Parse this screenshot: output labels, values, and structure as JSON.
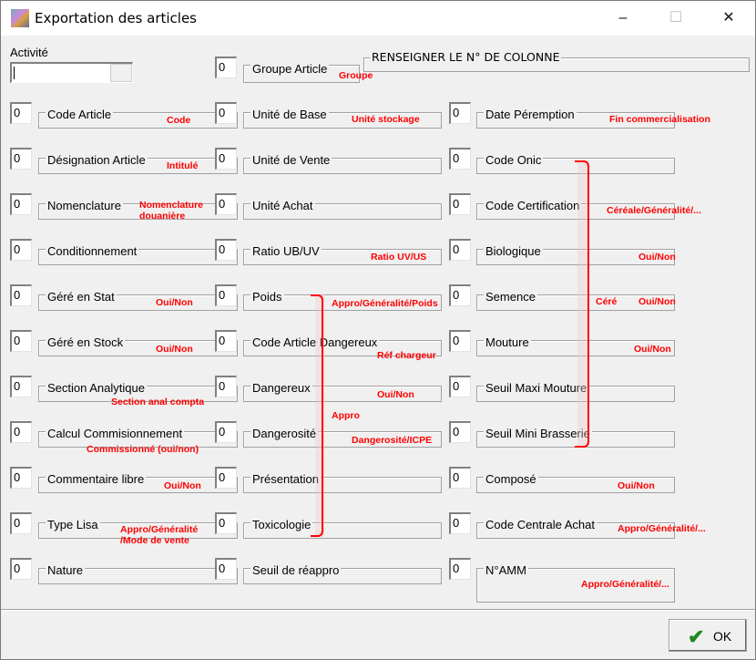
{
  "window": {
    "title": "Exportation des articles",
    "minimize": "–",
    "maximize": "☐",
    "close": "✕"
  },
  "activite": {
    "label": "Activité",
    "value": ""
  },
  "header": {
    "label": "RENSEIGNER LE N° DE COLONNE"
  },
  "groupe_article": {
    "label": "Groupe Article",
    "value": "0",
    "note": "Groupe"
  },
  "columns": [
    [
      {
        "label": "Code Article",
        "value": "0"
      },
      {
        "label": "Désignation Article",
        "value": "0"
      },
      {
        "label": "Nomenclature",
        "value": "0"
      },
      {
        "label": "Conditionnement",
        "value": "0"
      },
      {
        "label": "Géré en Stat",
        "value": "0"
      },
      {
        "label": "Géré en Stock",
        "value": "0"
      },
      {
        "label": "Section Analytique",
        "value": "0"
      },
      {
        "label": "Calcul Commisionnement",
        "value": "0"
      },
      {
        "label": "Commentaire libre",
        "value": "0"
      },
      {
        "label": "Type Lisa",
        "value": "0"
      },
      {
        "label": "Nature",
        "value": "0"
      }
    ],
    [
      {
        "label": "Unité de Base",
        "value": "0"
      },
      {
        "label": "Unité de Vente",
        "value": "0"
      },
      {
        "label": "Unité Achat",
        "value": "0"
      },
      {
        "label": "Ratio UB/UV",
        "value": "0"
      },
      {
        "label": "Poids",
        "value": "0"
      },
      {
        "label": "Code Article Dangereux",
        "value": "0"
      },
      {
        "label": "Dangereux",
        "value": "0"
      },
      {
        "label": "Dangerosité",
        "value": "0"
      },
      {
        "label": "Présentation",
        "value": "0"
      },
      {
        "label": "Toxicologie",
        "value": "0"
      },
      {
        "label": "Seuil de réappro",
        "value": "0"
      }
    ],
    [
      {
        "label": "Date Péremption",
        "value": "0"
      },
      {
        "label": "Code Onic",
        "value": "0"
      },
      {
        "label": "Code Certification",
        "value": "0"
      },
      {
        "label": "Biologique",
        "value": "0"
      },
      {
        "label": "Semence",
        "value": "0"
      },
      {
        "label": "Mouture",
        "value": "0"
      },
      {
        "label": "Seuil Maxi Mouture",
        "value": "0"
      },
      {
        "label": "Seuil Mini Brasserie",
        "value": "0"
      },
      {
        "label": "Composé",
        "value": "0"
      },
      {
        "label": "Code Centrale Achat",
        "value": "0"
      },
      {
        "label": "N°AMM",
        "value": "0"
      }
    ]
  ],
  "annotations": [
    "Code",
    "Intitulé",
    "Nomenclature\ndouanière",
    "Oui/Non",
    "Oui/Non",
    "Section anal compta",
    "Commissionné (oui/non)",
    "Oui/Non",
    "Appro/Généralité\n/Mode de vente",
    "Unité stockage",
    "Ratio UV/US",
    "Appro/Généralité/Poids",
    "Réf chargeur",
    "Oui/Non",
    "Dangerosité/ICPE",
    "Fin commercialisation",
    "Céréale/Généralité/...",
    "Oui/Non",
    "Oui/Non",
    "Oui/Non",
    "Oui/Non",
    "Appro/Généralité/...",
    "Appro/Généralité/..."
  ],
  "brackets": {
    "appro": "Appro",
    "cere": "Céré"
  },
  "ok_button": {
    "label": "OK",
    "icon": "checkmark-icon"
  },
  "colors": {
    "annotation": "#ff0000",
    "check": "#1a8a1a"
  }
}
